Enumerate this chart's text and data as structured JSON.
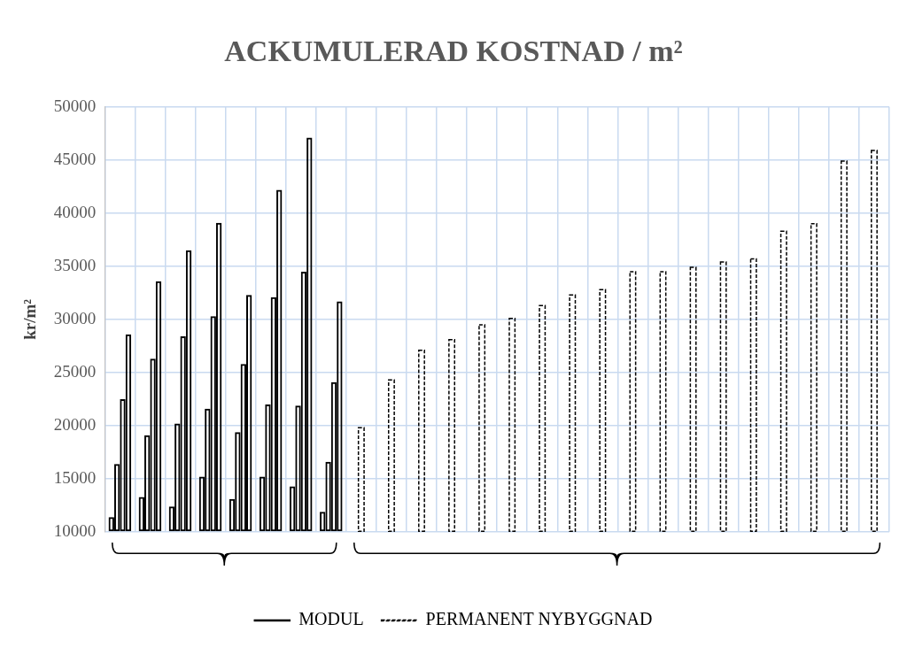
{
  "chart_data": {
    "type": "bar",
    "title": "ACKUMULERAD KOSTNAD / m²",
    "ylabel": "kr/m²",
    "categories": [
      null,
      null,
      null,
      null,
      null,
      null,
      null,
      null,
      null,
      null,
      null,
      null,
      null,
      null,
      null,
      null,
      null,
      null,
      null,
      null,
      null,
      null,
      null,
      null,
      null,
      null
    ],
    "series": [
      {
        "name": "MODUL",
        "color": "#000000",
        "line_style": "solid",
        "values": [
          11400,
          13300,
          12400,
          15200,
          13100,
          15200,
          14300,
          11900,
          null,
          null,
          null,
          null,
          null,
          null,
          null,
          null,
          null,
          null,
          null,
          null,
          null,
          null,
          null,
          null,
          null,
          null
        ]
      },
      {
        "color": "#000000",
        "line_style": "solid",
        "values": [
          16400,
          19100,
          20200,
          21600,
          19400,
          22000,
          21900,
          16600,
          null,
          null,
          null,
          null,
          null,
          null,
          null,
          null,
          null,
          null,
          null,
          null,
          null,
          null,
          null,
          null,
          null,
          null
        ]
      },
      {
        "color": "#000000",
        "line_style": "solid",
        "values": [
          22500,
          26300,
          28400,
          30300,
          25800,
          32100,
          34500,
          24100,
          null,
          null,
          null,
          null,
          null,
          null,
          null,
          null,
          null,
          null,
          null,
          null,
          null,
          null,
          null,
          null,
          null,
          null
        ]
      },
      {
        "color": "#000000",
        "line_style": "solid",
        "values": [
          28600,
          33600,
          36500,
          39100,
          32300,
          42200,
          47100,
          31700,
          null,
          null,
          null,
          null,
          null,
          null,
          null,
          null,
          null,
          null,
          null,
          null,
          null,
          null,
          null,
          null,
          null,
          null
        ]
      },
      {
        "name": "PERMANENT NYBYGGNAD",
        "color": "#000000",
        "line_style": "dashed",
        "values": [
          null,
          null,
          null,
          null,
          null,
          null,
          null,
          null,
          19800,
          24300,
          27100,
          28100,
          29500,
          30100,
          31300,
          32300,
          32800,
          34500,
          34500,
          34900,
          35400,
          35700,
          38300,
          39000,
          44900,
          45900
        ]
      }
    ],
    "ylim": [
      10000,
      50000
    ],
    "yticks": [
      10000,
      15000,
      20000,
      25000,
      30000,
      35000,
      40000,
      45000,
      50000
    ],
    "grid": true,
    "legend": "bottom",
    "tick_labels": "y"
  }
}
